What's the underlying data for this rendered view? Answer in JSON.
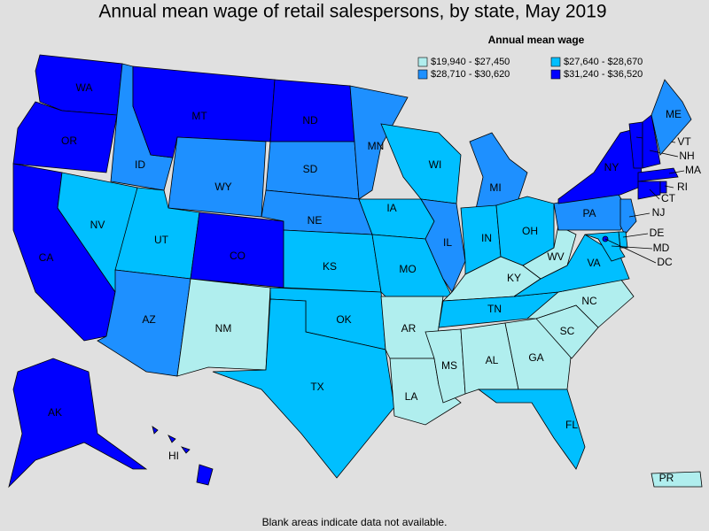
{
  "header": {
    "title": "Annual mean wage of retail salespersons, by state, May 2019"
  },
  "legend": {
    "title": "Annual mean wage",
    "items": [
      {
        "label": "$19,940 - $27,450",
        "color": "#b0eeee"
      },
      {
        "label": "$27,640 - $28,670",
        "color": "#00bfff"
      },
      {
        "label": "$28,710 - $30,620",
        "color": "#1e90ff"
      },
      {
        "label": "$31,240 - $36,520",
        "color": "#0000ff"
      }
    ]
  },
  "states": [
    {
      "label": "WA",
      "color": "#0000ff"
    },
    {
      "label": "OR",
      "color": "#0000ff"
    },
    {
      "label": "CA",
      "color": "#0000ff"
    },
    {
      "label": "NV",
      "color": "#00bfff"
    },
    {
      "label": "ID",
      "color": "#1e90ff"
    },
    {
      "label": "MT",
      "color": "#0000ff"
    },
    {
      "label": "WY",
      "color": "#1e90ff"
    },
    {
      "label": "UT",
      "color": "#00bfff"
    },
    {
      "label": "CO",
      "color": "#0000ff"
    },
    {
      "label": "AZ",
      "color": "#1e90ff"
    },
    {
      "label": "NM",
      "color": "#b0eeee"
    },
    {
      "label": "ND",
      "color": "#0000ff"
    },
    {
      "label": "SD",
      "color": "#1e90ff"
    },
    {
      "label": "NE",
      "color": "#1e90ff"
    },
    {
      "label": "KS",
      "color": "#00bfff"
    },
    {
      "label": "OK",
      "color": "#00bfff"
    },
    {
      "label": "TX",
      "color": "#00bfff"
    },
    {
      "label": "MN",
      "color": "#1e90ff"
    },
    {
      "label": "IA",
      "color": "#00bfff"
    },
    {
      "label": "MO",
      "color": "#00bfff"
    },
    {
      "label": "AR",
      "color": "#b0eeee"
    },
    {
      "label": "LA",
      "color": "#b0eeee"
    },
    {
      "label": "WI",
      "color": "#00bfff"
    },
    {
      "label": "IL",
      "color": "#1e90ff"
    },
    {
      "label": "MI",
      "color": "#1e90ff"
    },
    {
      "label": "IN",
      "color": "#00bfff"
    },
    {
      "label": "OH",
      "color": "#00bfff"
    },
    {
      "label": "KY",
      "color": "#b0eeee"
    },
    {
      "label": "TN",
      "color": "#00bfff"
    },
    {
      "label": "MS",
      "color": "#b0eeee"
    },
    {
      "label": "AL",
      "color": "#b0eeee"
    },
    {
      "label": "GA",
      "color": "#b0eeee"
    },
    {
      "label": "FL",
      "color": "#00bfff"
    },
    {
      "label": "SC",
      "color": "#b0eeee"
    },
    {
      "label": "NC",
      "color": "#b0eeee"
    },
    {
      "label": "VA",
      "color": "#00bfff"
    },
    {
      "label": "WV",
      "color": "#b0eeee"
    },
    {
      "label": "PA",
      "color": "#1e90ff"
    },
    {
      "label": "NY",
      "color": "#0000ff"
    },
    {
      "label": "VT",
      "color": "#0000ff"
    },
    {
      "label": "NH",
      "color": "#0000ff"
    },
    {
      "label": "ME",
      "color": "#1e90ff"
    },
    {
      "label": "MA",
      "color": "#0000ff"
    },
    {
      "label": "CT",
      "color": "#0000ff"
    },
    {
      "label": "RI",
      "color": "#0000ff"
    },
    {
      "label": "NJ",
      "color": "#1e90ff"
    },
    {
      "label": "DE",
      "color": "#00bfff"
    },
    {
      "label": "MD",
      "color": "#00bfff"
    },
    {
      "label": "DC",
      "color": "#0000ff"
    },
    {
      "label": "AK",
      "color": "#0000ff"
    },
    {
      "label": "HI",
      "color": "#0000ff"
    },
    {
      "label": "PR",
      "color": "#b0eeee"
    }
  ],
  "footnote": "Blank areas indicate data not available."
}
